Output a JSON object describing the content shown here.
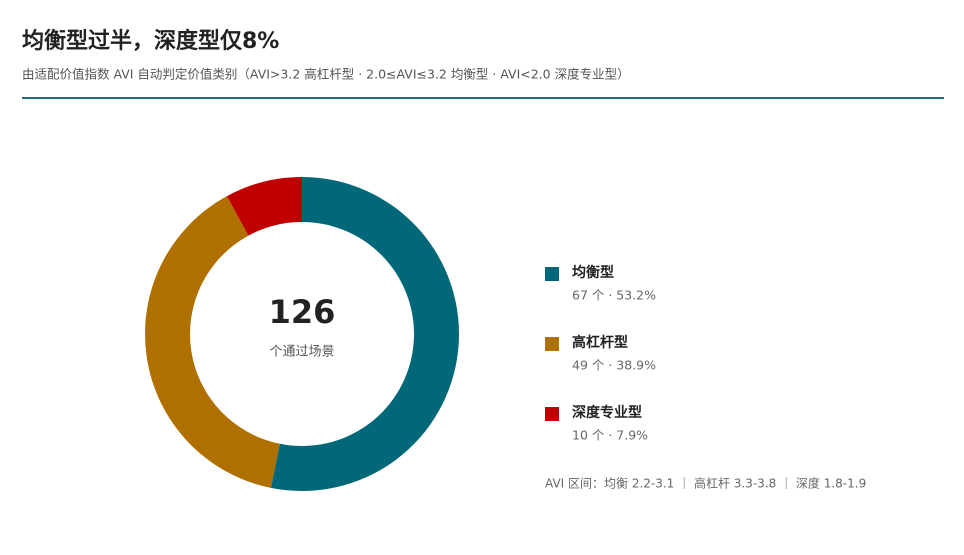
{
  "chart_data": {
    "type": "donut",
    "title": "均衡型过半，深度型仅8%",
    "subtitle": "由适配价值指数 AVI 自动判定价值类别（AVI>3.2 高杠杆型 · 2.0≤AVI≤3.2 均衡型 · AVI<2.0 深度专业型）",
    "total": 126,
    "center_label": "个通过场景",
    "categories": [
      "均衡型",
      "高杠杆型",
      "深度专业型"
    ],
    "values": [
      67,
      49,
      10
    ],
    "value_labels": [
      "67 个 · 53.2%",
      "49 个 · 38.9%",
      "10 个 · 7.9%"
    ],
    "colors": [
      "#006878",
      "#b07000",
      "#c00000"
    ],
    "note": "AVI 区间：均衡 2.2-3.1 ｜ 高杠杆 3.3-3.8 ｜ 深度 1.8-1.9"
  }
}
